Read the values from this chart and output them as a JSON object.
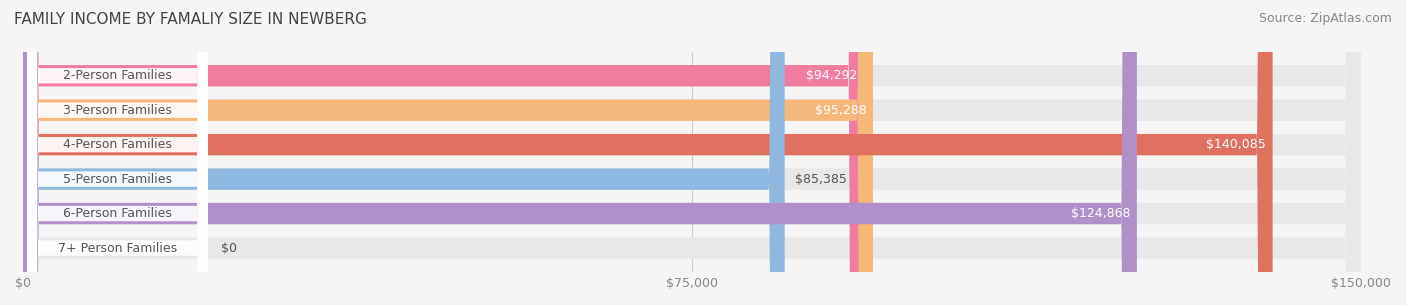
{
  "title": "FAMILY INCOME BY FAMALIY SIZE IN NEWBERG",
  "source": "Source: ZipAtlas.com",
  "categories": [
    "2-Person Families",
    "3-Person Families",
    "4-Person Families",
    "5-Person Families",
    "6-Person Families",
    "7+ Person Families"
  ],
  "values": [
    94292,
    95288,
    140085,
    85385,
    124868,
    0
  ],
  "bar_colors": [
    "#f07ca0",
    "#f5b87a",
    "#e07060",
    "#8fb8e0",
    "#b090c8",
    "#80d8d8"
  ],
  "label_texts": [
    "$94,292",
    "$95,288",
    "$140,085",
    "$85,385",
    "$124,868",
    "$0"
  ],
  "xmax": 150000,
  "xticks": [
    0,
    75000,
    150000
  ],
  "xtick_labels": [
    "$0",
    "$75,000",
    "$150,000"
  ],
  "background_color": "#f5f5f5",
  "bar_background": "#e8e8e8",
  "title_fontsize": 11,
  "source_fontsize": 9,
  "bar_label_fontsize": 9,
  "cat_label_fontsize": 9,
  "bar_height": 0.62
}
